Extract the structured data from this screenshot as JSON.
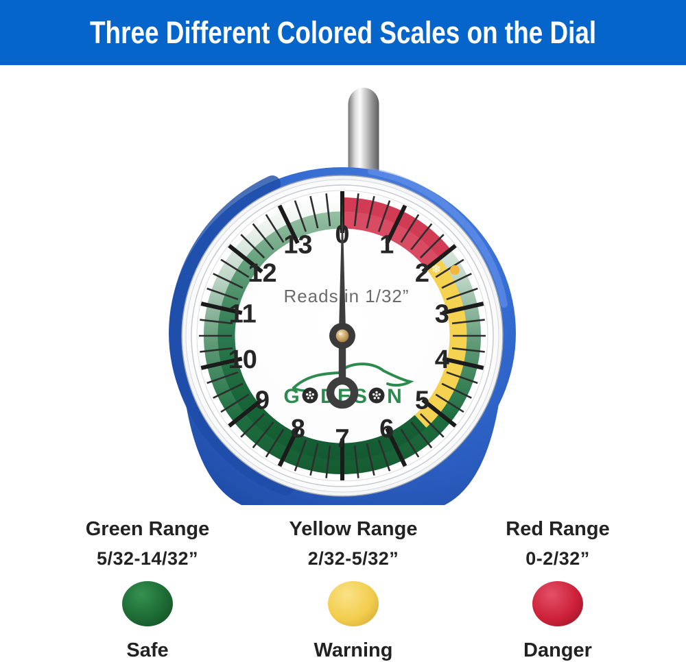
{
  "banner": {
    "title": "Three Different Colored Scales on the Dial",
    "bg_color": "#0565CB",
    "text_color": "#FFFFFF"
  },
  "gauge": {
    "brand": "GODESON",
    "dial_label": "Reads in 1/32”",
    "unit_per_rev": 14,
    "numbers": [
      "0",
      "1",
      "2",
      "3",
      "4",
      "5",
      "6",
      "7",
      "8",
      "9",
      "10",
      "11",
      "12",
      "13"
    ],
    "needle_value": 0,
    "scale_ranges": [
      {
        "name": "red",
        "from": 0,
        "to": 2,
        "color": "#D23B54"
      },
      {
        "name": "yellow",
        "from": 2,
        "to": 5,
        "color": "#F5D24F"
      },
      {
        "name": "green",
        "from": 5,
        "to": 14,
        "color": "#1A6A3A"
      }
    ],
    "markers": {
      "snowflake_glyph": "❄",
      "snowflake_value": 2.12,
      "dot_value": 2.32,
      "dot_color": "#F2B73B"
    },
    "body_color": "#2F66CD",
    "needle_color": "#3E3E3E"
  },
  "legend": {
    "items": [
      {
        "title": "Green Range",
        "range": "5/32-14/32”",
        "status": "Safe",
        "color": "#1D6A34",
        "color_light": "#35914F",
        "color_dark": "#0F4A21"
      },
      {
        "title": "Yellow Range",
        "range": "2/32-5/32”",
        "status": "Warning",
        "color": "#F2CD4E",
        "color_light": "#F9E287",
        "color_dark": "#C9A32E"
      },
      {
        "title": "Red Range",
        "range": "0-2/32”",
        "status": "Danger",
        "color": "#CD2139",
        "color_light": "#E25168",
        "color_dark": "#8F1426"
      }
    ]
  }
}
